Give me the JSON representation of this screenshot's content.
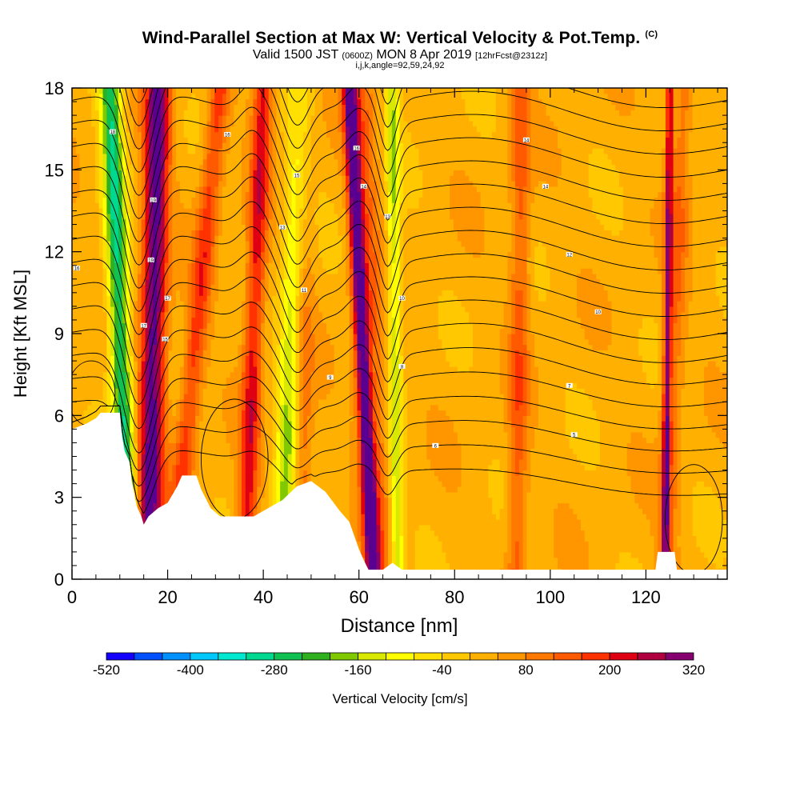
{
  "title": "Wind-Parallel Section at Max W: Vertical Velocity & Pot.Temp.",
  "title_badge": "(C)",
  "subtitle_main": "Valid 1500 JST",
  "subtitle_utc": "(0600Z)",
  "subtitle_date": "MON 8 Apr 2019",
  "subtitle_fcst": "[12hrFcst@2312z]",
  "subtitle_ijk": "i,j,k,angle=92,59,24,92",
  "colors": {
    "palette": [
      "#1400ff",
      "#0050ff",
      "#0090ff",
      "#00c8ff",
      "#00e8d0",
      "#00d890",
      "#10c050",
      "#30b020",
      "#80c800",
      "#d8e800",
      "#ffff00",
      "#ffe000",
      "#ffc800",
      "#ffb000",
      "#ff9600",
      "#ff7800",
      "#ff5a00",
      "#ff3200",
      "#e00014",
      "#b00040",
      "#860070",
      "#5a0090"
    ],
    "terrain": "#ffffff",
    "contour": "#000000"
  },
  "chart_data": {
    "type": "heatmap",
    "xlabel": "Distance [nm]",
    "ylabel": "Height [Kft MSL]",
    "xlim": [
      0,
      137
    ],
    "ylim": [
      0,
      18
    ],
    "x_ticks": [
      0,
      20,
      40,
      60,
      80,
      100,
      120
    ],
    "y_ticks": [
      0,
      3,
      6,
      9,
      12,
      15,
      18
    ],
    "x_tick_labels": [
      "0",
      "20",
      "40",
      "60",
      "80",
      "100",
      "120"
    ],
    "y_tick_labels": [
      "0",
      "3",
      "6",
      "9",
      "12",
      "15",
      "18"
    ],
    "colorbar": {
      "label": "Vertical Velocity [cm/s]",
      "min": -520,
      "max": 320,
      "step": 40,
      "tick_values": [
        -520,
        -400,
        -280,
        -160,
        -40,
        80,
        200,
        320
      ],
      "tick_labels": [
        "-520",
        "-400",
        "-280",
        "-160",
        "-40",
        "80",
        "200",
        "320"
      ]
    },
    "updraft_bands": [
      {
        "x_bottom": 16,
        "x_top": 18,
        "peak": 320,
        "width": 2.6
      },
      {
        "x_bottom": 21,
        "x_top": 31,
        "peak": 160,
        "width": 2.2
      },
      {
        "x_bottom": 36,
        "x_top": 40,
        "peak": 200,
        "width": 2.0
      },
      {
        "x_bottom": 48,
        "x_top": 48,
        "peak": 120,
        "width": 2.2
      },
      {
        "x_bottom": 63,
        "x_top": 58,
        "peak": 300,
        "width": 1.4
      },
      {
        "x_bottom": 64,
        "x_top": 60,
        "peak": 120,
        "width": 3.0
      },
      {
        "x_bottom": 93,
        "x_top": 94,
        "peak": 120,
        "width": 2.0
      },
      {
        "x_bottom": 124,
        "x_top": 125,
        "peak": 240,
        "width": 0.8
      },
      {
        "x_bottom": 124,
        "x_top": 128,
        "peak": 100,
        "width": 2.0
      }
    ],
    "downdraft_bands": [
      {
        "x_bottom": 12,
        "x_top": 8,
        "peak": -300,
        "width": 2.2
      },
      {
        "x_bottom": 44,
        "x_top": 48,
        "peak": -200,
        "width": 2.4
      },
      {
        "x_bottom": 68,
        "x_top": 67,
        "peak": -170,
        "width": 1.4
      }
    ],
    "terrain_profile": [
      {
        "x": 0,
        "z": 5.5
      },
      {
        "x": 3,
        "z": 5.7
      },
      {
        "x": 5,
        "z": 5.9
      },
      {
        "x": 6,
        "z": 6.1
      },
      {
        "x": 10,
        "z": 6.1
      },
      {
        "x": 10.5,
        "z": 5.2
      },
      {
        "x": 11,
        "z": 4.7
      },
      {
        "x": 12,
        "z": 4.3
      },
      {
        "x": 12.5,
        "z": 3.6
      },
      {
        "x": 13.5,
        "z": 2.7
      },
      {
        "x": 14.5,
        "z": 2.3
      },
      {
        "x": 15,
        "z": 2.0
      },
      {
        "x": 16,
        "z": 2.3
      },
      {
        "x": 18,
        "z": 2.6
      },
      {
        "x": 20,
        "z": 2.8
      },
      {
        "x": 22,
        "z": 3.4
      },
      {
        "x": 23,
        "z": 3.8
      },
      {
        "x": 26,
        "z": 3.8
      },
      {
        "x": 27,
        "z": 3.3
      },
      {
        "x": 29,
        "z": 2.6
      },
      {
        "x": 31,
        "z": 2.3
      },
      {
        "x": 38,
        "z": 2.3
      },
      {
        "x": 41,
        "z": 2.6
      },
      {
        "x": 44,
        "z": 2.9
      },
      {
        "x": 47,
        "z": 3.4
      },
      {
        "x": 50,
        "z": 3.6
      },
      {
        "x": 53,
        "z": 3.2
      },
      {
        "x": 56,
        "z": 2.5
      },
      {
        "x": 58,
        "z": 2.1
      },
      {
        "x": 59,
        "z": 1.6
      },
      {
        "x": 60,
        "z": 1.1
      },
      {
        "x": 61,
        "z": 0.7
      },
      {
        "x": 62,
        "z": 0.35
      },
      {
        "x": 65,
        "z": 0.35
      },
      {
        "x": 67,
        "z": 0.6
      },
      {
        "x": 69,
        "z": 0.35
      },
      {
        "x": 71,
        "z": 0.35
      },
      {
        "x": 122,
        "z": 0.35
      },
      {
        "x": 122.5,
        "z": 1.0
      },
      {
        "x": 126,
        "z": 1.0
      },
      {
        "x": 126.5,
        "z": 0.35
      },
      {
        "x": 137,
        "z": 0.35
      }
    ],
    "isentrope_labels": [
      {
        "x": 1,
        "z": 11.4,
        "text": "16"
      },
      {
        "x": 8.5,
        "z": 16.4,
        "text": "18"
      },
      {
        "x": 15,
        "z": 9.3,
        "text": "17"
      },
      {
        "x": 16.5,
        "z": 11.7,
        "text": "19"
      },
      {
        "x": 17,
        "z": 13.9,
        "text": "19"
      },
      {
        "x": 19.5,
        "z": 8.8,
        "text": "15"
      },
      {
        "x": 20,
        "z": 10.3,
        "text": "17"
      },
      {
        "x": 32.5,
        "z": 16.3,
        "text": "16"
      },
      {
        "x": 44,
        "z": 12.9,
        "text": "13"
      },
      {
        "x": 47,
        "z": 14.8,
        "text": "15"
      },
      {
        "x": 48.5,
        "z": 10.6,
        "text": "11"
      },
      {
        "x": 54,
        "z": 7.4,
        "text": "9"
      },
      {
        "x": 59.5,
        "z": 15.8,
        "text": "16"
      },
      {
        "x": 61,
        "z": 14.4,
        "text": "14"
      },
      {
        "x": 66,
        "z": 13.3,
        "text": "13"
      },
      {
        "x": 69,
        "z": 10.3,
        "text": "10"
      },
      {
        "x": 69,
        "z": 7.8,
        "text": "8"
      },
      {
        "x": 76,
        "z": 4.9,
        "text": "6"
      },
      {
        "x": 95,
        "z": 16.1,
        "text": "14"
      },
      {
        "x": 99,
        "z": 14.4,
        "text": "14"
      },
      {
        "x": 104,
        "z": 11.9,
        "text": "12"
      },
      {
        "x": 104,
        "z": 7.1,
        "text": "7"
      },
      {
        "x": 105,
        "z": 5.3,
        "text": "5"
      },
      {
        "x": 110,
        "z": 9.8,
        "text": "10"
      }
    ]
  }
}
